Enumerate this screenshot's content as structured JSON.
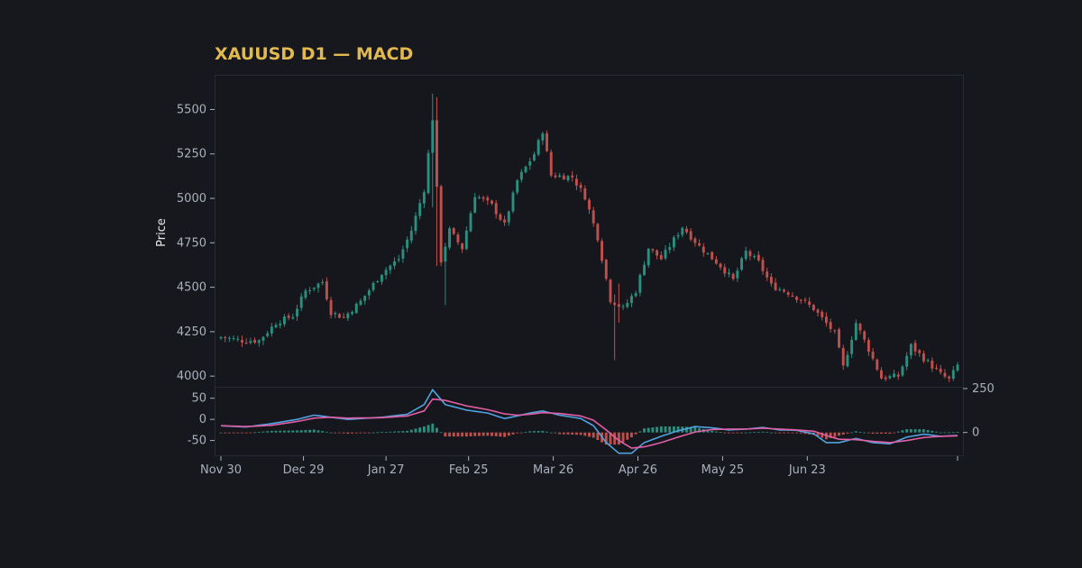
{
  "chart_data": {
    "type": "candlestick",
    "title": "XAUUSD D1 — MACD",
    "ylabel": "Price",
    "xlabels": [
      "Nov 30",
      "Dec 29",
      "Jan 27",
      "Feb 25",
      "Mar 26",
      "Apr 26",
      "May 25",
      "Jun 23"
    ],
    "price_ticks": [
      4000,
      4250,
      4500,
      4750,
      5000,
      5250,
      5500
    ],
    "price_ylim": [
      3940,
      5690
    ],
    "macd_ticks_left": [
      50,
      0,
      -50
    ],
    "macd_ylim_left": [
      -85,
      75
    ],
    "macd_ticks_right": [
      250,
      0
    ],
    "macd_ylim_right": [
      -130,
      255
    ],
    "colors": {
      "up": "#2a8f7f",
      "down": "#c0504d",
      "macd": "#4fa3e0",
      "signal": "#e05fa5",
      "title": "#e2b94e"
    },
    "close_anchors": [
      [
        0,
        4220
      ],
      [
        5,
        4200
      ],
      [
        9,
        4200
      ],
      [
        13,
        4300
      ],
      [
        17,
        4340
      ],
      [
        20,
        4480
      ],
      [
        24,
        4530
      ],
      [
        26,
        4360
      ],
      [
        29,
        4330
      ],
      [
        33,
        4420
      ],
      [
        38,
        4580
      ],
      [
        42,
        4660
      ],
      [
        45,
        4820
      ],
      [
        48,
        5050
      ],
      [
        50,
        5450
      ],
      [
        52,
        4650
      ],
      [
        54,
        4820
      ],
      [
        57,
        4720
      ],
      [
        60,
        5020
      ],
      [
        64,
        4960
      ],
      [
        67,
        4850
      ],
      [
        70,
        5100
      ],
      [
        74,
        5250
      ],
      [
        76,
        5380
      ],
      [
        78,
        5130
      ],
      [
        83,
        5120
      ],
      [
        86,
        5010
      ],
      [
        89,
        4780
      ],
      [
        92,
        4430
      ],
      [
        95,
        4380
      ],
      [
        98,
        4480
      ],
      [
        101,
        4720
      ],
      [
        104,
        4660
      ],
      [
        109,
        4840
      ],
      [
        113,
        4730
      ],
      [
        118,
        4620
      ],
      [
        121,
        4540
      ],
      [
        124,
        4700
      ],
      [
        127,
        4640
      ],
      [
        130,
        4510
      ],
      [
        134,
        4470
      ],
      [
        137,
        4430
      ],
      [
        140,
        4380
      ],
      [
        145,
        4240
      ],
      [
        147,
        4050
      ],
      [
        150,
        4300
      ],
      [
        153,
        4150
      ],
      [
        156,
        3990
      ],
      [
        160,
        4000
      ],
      [
        163,
        4170
      ],
      [
        166,
        4100
      ],
      [
        170,
        4010
      ],
      [
        172,
        3980
      ],
      [
        174,
        4060
      ]
    ],
    "wick_spikes": [
      {
        "i": 50,
        "high": 5590,
        "low": 4950
      },
      {
        "i": 51,
        "high": 5570,
        "low": 4620
      },
      {
        "i": 53,
        "high": 4750,
        "low": 4400
      },
      {
        "i": 93,
        "high": 4460,
        "low": 4090
      },
      {
        "i": 94,
        "high": 4520,
        "low": 4300
      }
    ],
    "macd_anchors": [
      [
        0,
        -15
      ],
      [
        6,
        -18
      ],
      [
        12,
        -10
      ],
      [
        18,
        0
      ],
      [
        22,
        10
      ],
      [
        26,
        5
      ],
      [
        30,
        0
      ],
      [
        38,
        5
      ],
      [
        44,
        12
      ],
      [
        48,
        35
      ],
      [
        50,
        70
      ],
      [
        53,
        35
      ],
      [
        58,
        22
      ],
      [
        63,
        15
      ],
      [
        67,
        2
      ],
      [
        70,
        8
      ],
      [
        73,
        15
      ],
      [
        76,
        20
      ],
      [
        80,
        10
      ],
      [
        85,
        2
      ],
      [
        88,
        -15
      ],
      [
        91,
        -55
      ],
      [
        94,
        -80
      ],
      [
        97,
        -80
      ],
      [
        100,
        -55
      ],
      [
        104,
        -40
      ],
      [
        108,
        -27
      ],
      [
        112,
        -17
      ],
      [
        116,
        -20
      ],
      [
        120,
        -25
      ],
      [
        124,
        -23
      ],
      [
        128,
        -19
      ],
      [
        132,
        -25
      ],
      [
        136,
        -26
      ],
      [
        140,
        -34
      ],
      [
        143,
        -55
      ],
      [
        146,
        -55
      ],
      [
        150,
        -45
      ],
      [
        154,
        -55
      ],
      [
        158,
        -58
      ],
      [
        162,
        -42
      ],
      [
        166,
        -35
      ],
      [
        170,
        -40
      ],
      [
        174,
        -38
      ]
    ],
    "signal_anchors": [
      [
        0,
        -15
      ],
      [
        6,
        -17
      ],
      [
        12,
        -14
      ],
      [
        18,
        -5
      ],
      [
        22,
        3
      ],
      [
        26,
        5
      ],
      [
        30,
        3
      ],
      [
        38,
        4
      ],
      [
        44,
        8
      ],
      [
        48,
        20
      ],
      [
        50,
        48
      ],
      [
        53,
        45
      ],
      [
        58,
        32
      ],
      [
        63,
        23
      ],
      [
        67,
        13
      ],
      [
        70,
        10
      ],
      [
        73,
        12
      ],
      [
        76,
        16
      ],
      [
        80,
        14
      ],
      [
        85,
        8
      ],
      [
        88,
        -2
      ],
      [
        91,
        -25
      ],
      [
        94,
        -50
      ],
      [
        97,
        -68
      ],
      [
        100,
        -65
      ],
      [
        104,
        -55
      ],
      [
        108,
        -42
      ],
      [
        112,
        -30
      ],
      [
        116,
        -24
      ],
      [
        120,
        -23
      ],
      [
        124,
        -23
      ],
      [
        128,
        -21
      ],
      [
        132,
        -23
      ],
      [
        136,
        -25
      ],
      [
        140,
        -28
      ],
      [
        143,
        -38
      ],
      [
        146,
        -47
      ],
      [
        150,
        -48
      ],
      [
        154,
        -52
      ],
      [
        158,
        -55
      ],
      [
        162,
        -50
      ],
      [
        166,
        -43
      ],
      [
        170,
        -40
      ],
      [
        174,
        -39
      ]
    ]
  }
}
